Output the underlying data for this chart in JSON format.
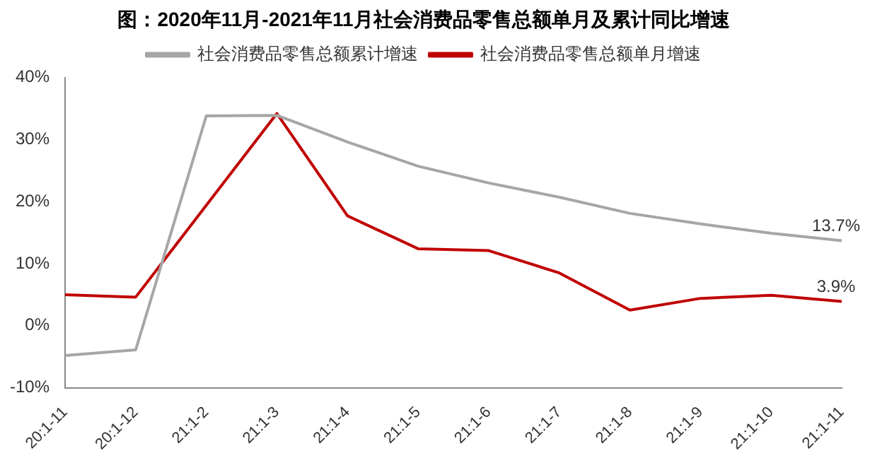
{
  "chart_data": {
    "type": "line",
    "title": "图：2020年11月-2021年11月社会消费品零售总额单月及累计同比增速",
    "categories": [
      "20:1-11",
      "20:1-12",
      "21:1-2",
      "21:1-3",
      "21:1-4",
      "21:1-5",
      "21:1-6",
      "21:1-7",
      "21:1-8",
      "21:1-9",
      "21:1-10",
      "21:1-11"
    ],
    "series": [
      {
        "name": "社会消费品零售总额累计增速",
        "color": "#a6a6a6",
        "values": [
          -4.8,
          -3.9,
          33.8,
          33.9,
          29.6,
          25.7,
          23.0,
          20.7,
          18.1,
          16.4,
          14.9,
          13.7
        ]
      },
      {
        "name": "社会消费品零售总额单月增速",
        "color": "#c00000",
        "values": [
          5.0,
          4.6,
          null,
          34.2,
          17.7,
          12.4,
          12.1,
          8.5,
          2.5,
          4.4,
          4.9,
          3.9
        ]
      }
    ],
    "ylim": [
      -10,
      40
    ],
    "yticks": [
      {
        "value": -10,
        "label": "-10%"
      },
      {
        "value": 0,
        "label": "0%"
      },
      {
        "value": 10,
        "label": "10%"
      },
      {
        "value": 20,
        "label": "20%"
      },
      {
        "value": 30,
        "label": "30%"
      },
      {
        "value": 40,
        "label": "40%"
      }
    ],
    "annotations": [
      {
        "text": "13.7%",
        "x": "21:1-11",
        "y": 13.7
      },
      {
        "text": "3.9%",
        "x": "21:1-11",
        "y": 3.9
      }
    ],
    "legend": "top",
    "grid": false,
    "marker": "none",
    "line_style": "solid"
  }
}
